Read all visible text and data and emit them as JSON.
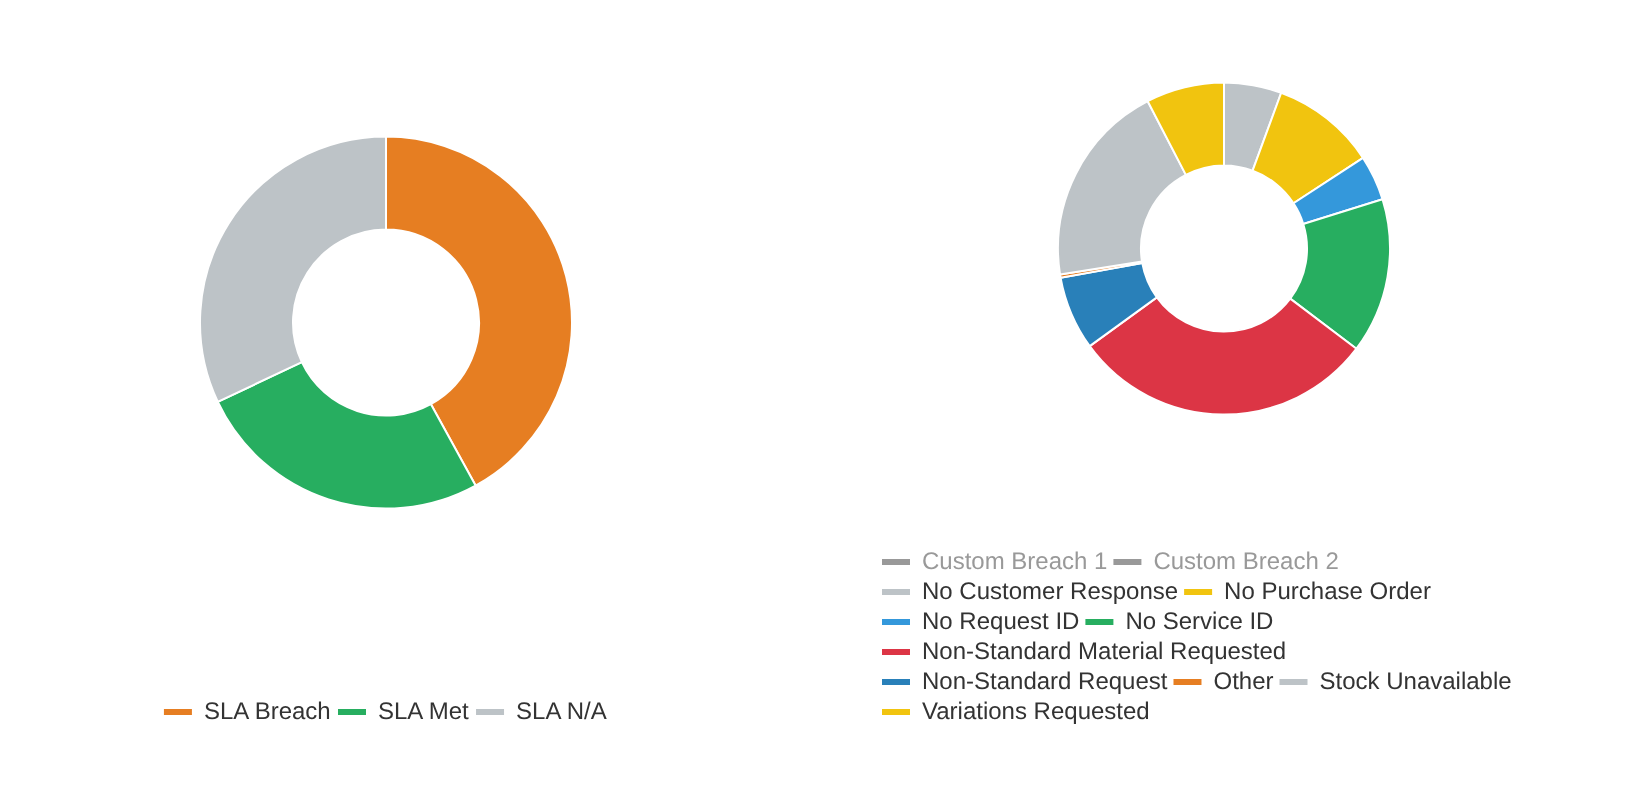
{
  "chart_data": [
    {
      "type": "donut",
      "categories": [
        "SLA Breach",
        "SLA Met",
        "SLA N/A"
      ],
      "values": [
        42,
        26,
        32
      ],
      "colors": [
        "#e67e22",
        "#27ae60",
        "#bdc3c7"
      ],
      "legend": "bottom"
    },
    {
      "type": "donut",
      "categories": [
        "Custom Breach 1",
        "Custom Breach 2",
        "No Customer Response",
        "No Purchase Order",
        "No Request ID",
        "No Service ID",
        "Non-Standard Material Requested",
        "Non-Standard Request",
        "Other",
        "Stock Unavailable",
        "Variations Requested"
      ],
      "values": [
        0,
        0,
        5.6,
        10.2,
        4.4,
        15.1,
        29.7,
        7.2,
        0.3,
        19.9,
        7.6
      ],
      "colors": [
        "#999999",
        "#999999",
        "#bdc3c7",
        "#f1c40f",
        "#3498db",
        "#27ae60",
        "#dc3545",
        "#2980b9",
        "#e67e22",
        "#bdc3c7",
        "#f1c40f"
      ],
      "legend": "bottom"
    }
  ]
}
